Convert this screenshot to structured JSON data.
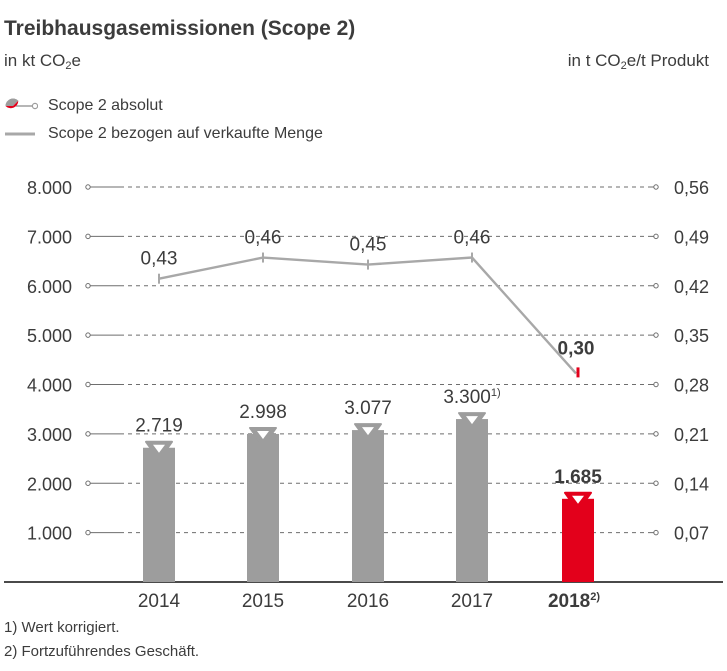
{
  "title": "Treibhausgasemissionen (Scope 2)",
  "unit_left": "in kt CO",
  "unit_left_sub": "2",
  "unit_left_tail": "e",
  "unit_right": "in t CO",
  "unit_right_sub": "2",
  "unit_right_tail": "e/t Produkt",
  "colors": {
    "bar_grey": "#9d9d9d",
    "bar_highlight": "#e3001b",
    "line": "#a8a8a8",
    "text": "#3c3c3c",
    "grid": "#6e6e6e"
  },
  "footnotes": [
    "1) Wert korrigiert.",
    "2) Fortzuführendes Geschäft."
  ],
  "chart_data": {
    "type": "bar",
    "categories": [
      "2014",
      "2015",
      "2016",
      "2017",
      "2018"
    ],
    "category_labels": [
      {
        "text": "2014",
        "sup": ""
      },
      {
        "text": "2015",
        "sup": ""
      },
      {
        "text": "2016",
        "sup": ""
      },
      {
        "text": "2017",
        "sup": ""
      },
      {
        "text": "2018",
        "sup": "2)"
      }
    ],
    "series": [
      {
        "name": "Scope 2 absolut",
        "type": "bar",
        "axis": "left",
        "values": [
          2719,
          2998,
          3077,
          3300,
          1685
        ],
        "labels": [
          "2.719",
          "2.998",
          "3.077",
          "3.300",
          "1.685"
        ],
        "label_sups": [
          "",
          "",
          "",
          "1)",
          ""
        ],
        "highlight_index": 4
      },
      {
        "name": "Scope 2 bezogen auf verkaufte Menge",
        "type": "line",
        "axis": "right",
        "values": [
          0.43,
          0.46,
          0.45,
          0.46,
          0.3
        ],
        "labels": [
          "0,43",
          "0,46",
          "0,45",
          "0,46",
          "0,30"
        ]
      }
    ],
    "y_left": {
      "ylim": [
        0,
        8000
      ],
      "ticks": [
        "1.000",
        "2.000",
        "3.000",
        "4.000",
        "5.000",
        "6.000",
        "7.000",
        "8.000"
      ]
    },
    "y_right": {
      "ylim": [
        0,
        0.56
      ],
      "ticks": [
        "0,07",
        "0,14",
        "0,21",
        "0,28",
        "0,35",
        "0,42",
        "0,49",
        "0,56"
      ]
    },
    "grid": true,
    "legend_position": "top-left"
  }
}
